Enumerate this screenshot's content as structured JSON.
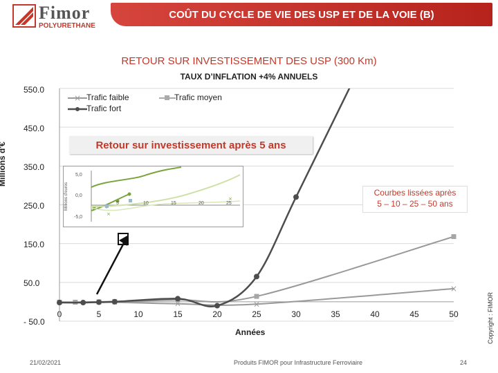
{
  "header": {
    "logo_word": "Fimor",
    "logo_sub": "POLYURETHANE",
    "title": "COÛT DU CYCLE DE VIE DES USP ET DE LA VOIE (B)"
  },
  "chart_data": {
    "type": "line",
    "title": "RETOUR SUR INVESTISSEMENT DES USP (300 Km)",
    "subtitle": "TAUX D’INFLATION +4% ANNUELS",
    "ylabel": "Millions d'€",
    "xlabel": "Années",
    "ytick_labels": [
      "550.0",
      "450.0",
      "350.0",
      "250.0",
      "150.0",
      "50.0",
      "- 50.0"
    ],
    "yticks": [
      550,
      450,
      350,
      250,
      150,
      50,
      -50
    ],
    "xtick_labels": [
      "0",
      "5",
      "10",
      "15",
      "20",
      "25",
      "30",
      "35",
      "40",
      "45",
      "50"
    ],
    "xticks": [
      0,
      5,
      10,
      15,
      20,
      25,
      30,
      35,
      40,
      45,
      50
    ],
    "xlim": [
      0,
      50
    ],
    "ylim": [
      -50,
      550
    ],
    "grid": true,
    "legend_position": "top-left",
    "series": [
      {
        "name": "Trafic faible",
        "color": "#999999",
        "marker": "x",
        "x": [
          0,
          2,
          5,
          7,
          15,
          25,
          50
        ],
        "y": [
          -1,
          -1,
          -1,
          -1,
          -5,
          -6,
          34
        ]
      },
      {
        "name": "Trafic moyen",
        "color": "#999999",
        "marker": "square",
        "x": [
          0,
          2,
          5,
          7,
          15,
          25,
          50
        ],
        "y": [
          -1,
          -1,
          0,
          1,
          5,
          14,
          168
        ]
      },
      {
        "name": "Trafic fort",
        "color": "#4d4d4d",
        "marker": "circle",
        "x": [
          0,
          3,
          5,
          7,
          15,
          20,
          25,
          30,
          37
        ],
        "y": [
          -2,
          -2,
          -1,
          0,
          8,
          -10,
          65,
          270,
          560
        ]
      }
    ]
  },
  "annotations": {
    "roi_box": "Retour sur investissement après 5 ans",
    "courbes_box": [
      "Courbes lissées après",
      "5 – 10 – 25 – 50 ans"
    ]
  },
  "inset": {
    "ylabel": "Millions d'euros",
    "yticks": [
      "5,0",
      "0,0",
      "-5,0"
    ],
    "xticks": [
      "5",
      "10",
      "15",
      "20",
      "25"
    ]
  },
  "footer": {
    "date": "21/02/2021",
    "product": "Produits FIMOR pour Infrastructure Ferroviaire",
    "page": "24",
    "copyright": "Copyright : FIMOR"
  }
}
